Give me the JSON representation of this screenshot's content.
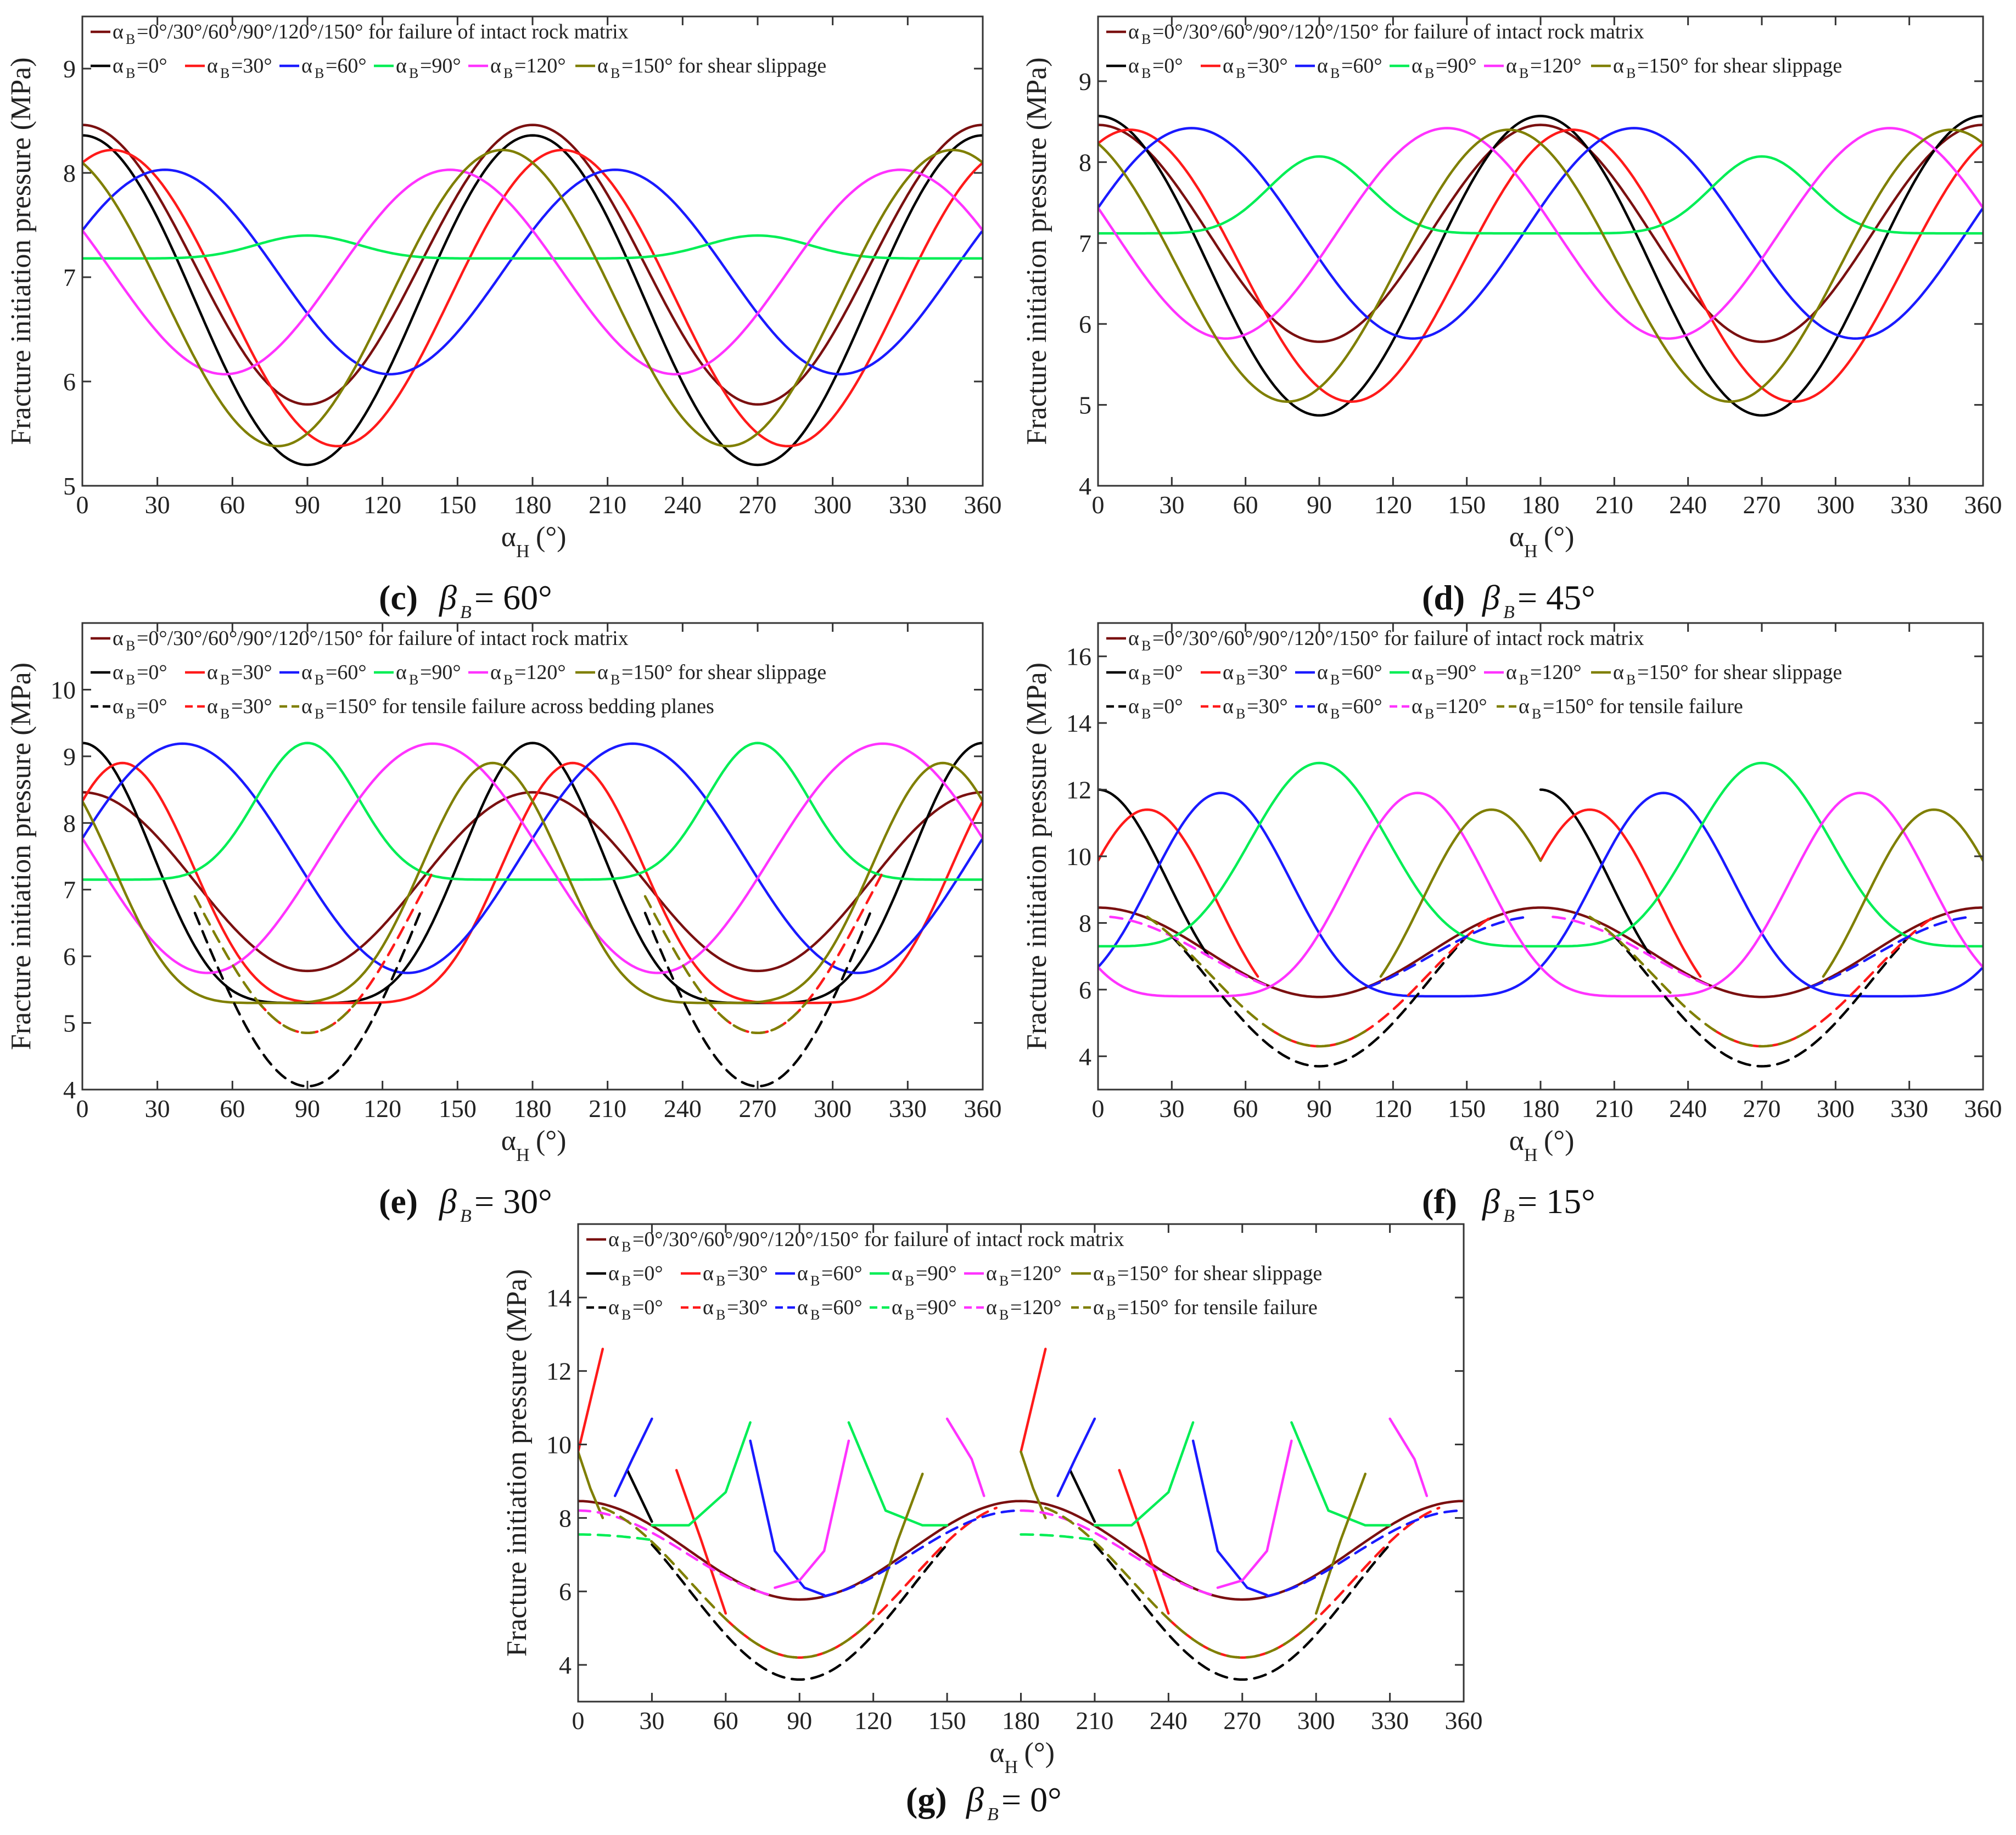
{
  "colors": {
    "matrix": "#7a1010",
    "s0": "#000000",
    "s30": "#ff1a1a",
    "s60": "#1a1aff",
    "s90": "#00ee55",
    "s120": "#ff33ff",
    "s150": "#7f7f00"
  },
  "common": {
    "xlabel": "α",
    "xlabel_sub": "H",
    "xlabel_unit": "(°)",
    "ylabel": "Fracture initiation pressure (MPa)",
    "xticks": [
      "0",
      "30",
      "60",
      "90",
      "120",
      "150",
      "180",
      "210",
      "240",
      "270",
      "300",
      "330",
      "360"
    ],
    "legend_matrix": "=0°/30°/60°/90°/120°/150° for failure of intact rock matrix",
    "legend_shear_suffix": "=150° for shear slippage",
    "legend_tensile_suffix_e": "=150° for tensile failure across bedding planes",
    "legend_tensile_suffix": "=150° for tensile failure",
    "alpha_b": "α",
    "alpha_b_sub": "B",
    "vals": {
      "v0": "=0°",
      "v30": "=30°",
      "v60": "=60°",
      "v90": "=90°",
      "v120": "=120°"
    }
  },
  "chart_data": [
    {
      "id": "c",
      "type": "line",
      "caption_label": "(c)",
      "caption_var": "β",
      "caption_sub": "B",
      "caption_eq": " = 60°",
      "xlabel": "α_H (°)",
      "ylabel": "Fracture initiation pressure (MPa)",
      "xlim": [
        0,
        360
      ],
      "ylim": [
        5,
        9.5
      ],
      "yticks": [
        "5",
        "6",
        "7",
        "8",
        "9"
      ],
      "series": [
        {
          "name": "intact rock matrix (all α_B)",
          "style": "matrix",
          "mode": "cos",
          "base": 7.12,
          "amp": 1.34,
          "phase": 0
        },
        {
          "name": "α_B=0° shear slippage",
          "style": "s0",
          "mode": "cos",
          "base": 6.78,
          "amp": 1.58,
          "phase": 0
        },
        {
          "name": "α_B=30° shear slippage",
          "style": "s30",
          "mode": "cos",
          "base": 6.8,
          "amp": 1.42,
          "phase": 12
        },
        {
          "name": "α_B=60° shear slippage",
          "style": "s60",
          "mode": "cos",
          "base": 7.05,
          "amp": 0.98,
          "phase": 33
        },
        {
          "name": "α_B=90° shear slippage",
          "style": "s90",
          "mode": "flat",
          "base": 7.18,
          "amp": 0.22,
          "phase": 0
        },
        {
          "name": "α_B=120° shear slippage",
          "style": "s120",
          "mode": "cos",
          "base": 7.05,
          "amp": 0.98,
          "phase": 147
        },
        {
          "name": "α_B=150° shear slippage",
          "style": "s150",
          "mode": "cos",
          "base": 6.8,
          "amp": 1.42,
          "phase": 168
        }
      ]
    },
    {
      "id": "d",
      "type": "line",
      "caption_label": "(d)",
      "caption_var": "β",
      "caption_sub": "B",
      "caption_eq": " = 45°",
      "xlabel": "α_H (°)",
      "ylabel": "Fracture initiation pressure (MPa)",
      "xlim": [
        0,
        360
      ],
      "ylim": [
        4,
        9.8
      ],
      "yticks": [
        "4",
        "5",
        "6",
        "7",
        "8",
        "9"
      ],
      "series": [
        {
          "name": "intact rock matrix (all α_B)",
          "style": "matrix",
          "mode": "cos",
          "base": 7.12,
          "amp": 1.34,
          "phase": 0
        },
        {
          "name": "α_B=0° shear slippage",
          "style": "s0",
          "mode": "cos",
          "base": 6.72,
          "amp": 1.85,
          "phase": 0
        },
        {
          "name": "α_B=30° shear slippage",
          "style": "s30",
          "mode": "cos",
          "base": 6.72,
          "amp": 1.68,
          "phase": 13
        },
        {
          "name": "α_B=60° shear slippage",
          "style": "s60",
          "mode": "cos",
          "base": 7.12,
          "amp": 1.3,
          "phase": 38
        },
        {
          "name": "α_B=90° shear slippage",
          "style": "s90",
          "mode": "flat",
          "base": 7.12,
          "amp": 0.95,
          "phase": 0
        },
        {
          "name": "α_B=120° shear slippage",
          "style": "s120",
          "mode": "cos",
          "base": 7.12,
          "amp": 1.3,
          "phase": 142
        },
        {
          "name": "α_B=150° shear slippage",
          "style": "s150",
          "mode": "cos",
          "base": 6.72,
          "amp": 1.68,
          "phase": 167
        }
      ]
    },
    {
      "id": "e",
      "type": "line",
      "caption_label": "(e)",
      "caption_var": "β",
      "caption_sub": "B",
      "caption_eq": " = 30°",
      "xlabel": "α_H (°)",
      "ylabel": "Fracture initiation pressure (MPa)",
      "xlim": [
        0,
        360
      ],
      "ylim": [
        4,
        11
      ],
      "yticks": [
        "4",
        "5",
        "6",
        "7",
        "8",
        "9",
        "10"
      ],
      "series": [
        {
          "name": "intact rock matrix (all α_B)",
          "style": "matrix",
          "mode": "cos",
          "base": 7.12,
          "amp": 1.34,
          "phase": 0
        },
        {
          "name": "α_B=0° shear slippage",
          "style": "s0",
          "mode": "peak",
          "base": 5.3,
          "amp": 3.9,
          "phase": 0
        },
        {
          "name": "α_B=30° shear slippage",
          "style": "s30",
          "mode": "peak",
          "base": 5.3,
          "amp": 3.6,
          "phase": 16
        },
        {
          "name": "α_B=60° shear slippage",
          "style": "s60",
          "mode": "cos",
          "base": 7.47,
          "amp": 1.72,
          "phase": 40
        },
        {
          "name": "α_B=90° shear slippage",
          "style": "s90",
          "mode": "flat",
          "base": 7.15,
          "amp": 2.05,
          "phase": 0
        },
        {
          "name": "α_B=120° shear slippage",
          "style": "s120",
          "mode": "cos",
          "base": 7.47,
          "amp": 1.72,
          "phase": 140
        },
        {
          "name": "α_B=150° shear slippage",
          "style": "s150",
          "mode": "peak",
          "base": 5.3,
          "amp": 3.6,
          "phase": 164
        },
        {
          "name": "α_B=0° tensile failure",
          "style": "s0",
          "mode": "cos",
          "dashed": true,
          "base": 6.65,
          "amp": 2.6,
          "phase": 0,
          "visible_min": 45,
          "visible_max": 135
        },
        {
          "name": "α_B=30° tensile failure",
          "style": "s30",
          "mode": "cos",
          "dashed": true,
          "base": 6.9,
          "amp": 2.05,
          "phase": 0,
          "visible_min": 70,
          "visible_max": 140
        },
        {
          "name": "α_B=150° tensile failure",
          "style": "s150",
          "mode": "cos",
          "dashed": true,
          "base": 6.9,
          "amp": 2.05,
          "phase": 0,
          "visible_min": 45,
          "visible_max": 110
        }
      ]
    },
    {
      "id": "f",
      "type": "line",
      "caption_label": "(f)",
      "caption_var": "β",
      "caption_sub": "B",
      "caption_eq": " = 15°",
      "xlabel": "α_H (°)",
      "ylabel": "Fracture initiation pressure (MPa)",
      "xlim": [
        0,
        360
      ],
      "ylim": [
        3,
        17
      ],
      "yticks": [
        "4",
        "6",
        "8",
        "10",
        "12",
        "14",
        "16"
      ],
      "series": [
        {
          "name": "intact rock matrix (all α_B)",
          "style": "matrix",
          "mode": "cos",
          "base": 7.12,
          "amp": 1.34,
          "phase": 0
        },
        {
          "name": "α_B=0° shear slippage",
          "style": "s0",
          "mode": "peak",
          "base": 5.6,
          "amp": 6.4,
          "phase": 0,
          "visible_min": 0,
          "visible_max": 45
        },
        {
          "name": "α_B=30° shear slippage",
          "style": "s30",
          "mode": "peak",
          "base": 5.0,
          "amp": 6.4,
          "phase": 20,
          "visible_min": 0,
          "visible_max": 65
        },
        {
          "name": "α_B=60° shear slippage",
          "style": "s60",
          "mode": "peak",
          "base": 5.8,
          "amp": 6.1,
          "phase": 50
        },
        {
          "name": "α_B=90° shear slippage",
          "style": "s90",
          "mode": "peak",
          "base": 7.3,
          "amp": 5.5,
          "phase": 90
        },
        {
          "name": "α_B=120° shear slippage",
          "style": "s120",
          "mode": "peak",
          "base": 5.8,
          "amp": 6.1,
          "phase": 130
        },
        {
          "name": "α_B=150° shear slippage",
          "style": "s150",
          "mode": "peak",
          "base": 5.0,
          "amp": 6.4,
          "phase": 160,
          "visible_min": 115,
          "visible_max": 180
        },
        {
          "name": "α_B=0° tensile failure",
          "style": "s0",
          "mode": "cos",
          "dashed": true,
          "base": 6.3,
          "amp": 2.6,
          "phase": 0,
          "visible_min": 30,
          "visible_max": 150
        },
        {
          "name": "α_B=30° tensile failure",
          "style": "s30",
          "mode": "cos",
          "dashed": true,
          "base": 6.5,
          "amp": 2.2,
          "phase": 0,
          "visible_min": 70,
          "visible_max": 160
        },
        {
          "name": "α_B=60° tensile failure",
          "style": "s60",
          "mode": "cos",
          "dashed": true,
          "base": 7.0,
          "amp": 1.2,
          "phase": 0,
          "visible_min": 110,
          "visible_max": 175
        },
        {
          "name": "α_B=120° tensile failure",
          "style": "s120",
          "mode": "cos",
          "dashed": true,
          "base": 7.0,
          "amp": 1.2,
          "phase": 0,
          "visible_min": 5,
          "visible_max": 70
        },
        {
          "name": "α_B=150° tensile failure",
          "style": "s150",
          "mode": "cos",
          "dashed": true,
          "base": 6.5,
          "amp": 2.2,
          "phase": 0,
          "visible_min": 20,
          "visible_max": 110
        }
      ]
    },
    {
      "id": "g",
      "type": "line",
      "caption_label": "(g)",
      "caption_var": "β",
      "caption_sub": "B",
      "caption_eq": " = 0°",
      "xlabel": "α_H (°)",
      "ylabel": "Fracture initiation pressure (MPa)",
      "xlim": [
        0,
        360
      ],
      "ylim": [
        3,
        16
      ],
      "yticks": [
        "4",
        "6",
        "8",
        "10",
        "12",
        "14"
      ],
      "series": [
        {
          "name": "intact rock matrix (all α_B)",
          "style": "matrix",
          "mode": "cos",
          "base": 7.12,
          "amp": 1.34,
          "phase": 0
        },
        {
          "name": "α_B=0° shear slippage",
          "style": "s0",
          "mode": "seg",
          "points": [
            [
              20,
              9.3
            ],
            [
              25,
              8.6
            ],
            [
              30,
              7.9
            ]
          ]
        },
        {
          "name": "α_B=30° shear slippage",
          "style": "s30",
          "mode": "seg",
          "points": [
            [
              0,
              9.8
            ],
            [
              5,
              11.2
            ],
            [
              10,
              12.6
            ]
          ],
          "extra": [
            [
              40,
              9.3
            ],
            [
              50,
              7.4
            ],
            [
              60,
              5.4
            ]
          ]
        },
        {
          "name": "α_B=60° shear slippage",
          "style": "s60",
          "mode": "seg",
          "points": [
            [
              15,
              8.6
            ],
            [
              22,
              9.6
            ],
            [
              30,
              10.7
            ]
          ],
          "extra": [
            [
              70,
              10.1
            ],
            [
              80,
              7.1
            ],
            [
              92,
              6.1
            ],
            [
              100,
              5.9
            ]
          ]
        },
        {
          "name": "α_B=90° shear slippage",
          "style": "s90",
          "mode": "seg",
          "points": [
            [
              30,
              7.8
            ],
            [
              45,
              7.8
            ],
            [
              60,
              8.7
            ],
            [
              70,
              10.6
            ]
          ],
          "extra": [
            [
              110,
              10.6
            ],
            [
              125,
              8.2
            ],
            [
              140,
              7.8
            ],
            [
              150,
              7.8
            ]
          ]
        },
        {
          "name": "α_B=120° shear slippage",
          "style": "s120",
          "mode": "seg",
          "points": [
            [
              80,
              6.1
            ],
            [
              90,
              6.3
            ],
            [
              100,
              7.1
            ],
            [
              110,
              10.1
            ]
          ],
          "extra": [
            [
              150,
              10.7
            ],
            [
              160,
              9.6
            ],
            [
              165,
              8.6
            ]
          ]
        },
        {
          "name": "α_B=150° shear slippage",
          "style": "s150",
          "mode": "seg",
          "points": [
            [
              120,
              5.4
            ],
            [
              130,
              7.4
            ],
            [
              140,
              9.2
            ]
          ],
          "extra": [
            [
              0,
              9.8
            ],
            [
              5,
              8.8
            ],
            [
              10,
              8.0
            ]
          ]
        },
        {
          "name": "α_B=0° tensile failure",
          "style": "s0",
          "mode": "cos",
          "dashed": true,
          "base": 6.05,
          "amp": 2.45,
          "phase": 0,
          "visible_min": 30,
          "visible_max": 150
        },
        {
          "name": "α_B=30° tensile failure",
          "style": "s30",
          "mode": "cos",
          "dashed": true,
          "base": 6.3,
          "amp": 2.1,
          "phase": 0,
          "visible_min": 60,
          "visible_max": 170
        },
        {
          "name": "α_B=60° tensile failure",
          "style": "s60",
          "mode": "cos",
          "dashed": true,
          "base": 7.0,
          "amp": 1.2,
          "phase": 0,
          "visible_min": 100,
          "visible_max": 180
        },
        {
          "name": "α_B=90° tensile failure",
          "style": "s90",
          "mode": "dip",
          "dashed": true,
          "base": 7.5,
          "amp": 0.3,
          "phase": 0,
          "visible_min": 0,
          "visible_max": 30
        },
        {
          "name": "α_B=120° tensile failure",
          "style": "s120",
          "mode": "cos",
          "dashed": true,
          "base": 7.0,
          "amp": 1.2,
          "phase": 0,
          "visible_min": 0,
          "visible_max": 80
        },
        {
          "name": "α_B=150° tensile failure",
          "style": "s150",
          "mode": "cos",
          "dashed": true,
          "base": 6.3,
          "amp": 2.1,
          "phase": 0,
          "visible_min": 10,
          "visible_max": 120
        }
      ]
    }
  ]
}
